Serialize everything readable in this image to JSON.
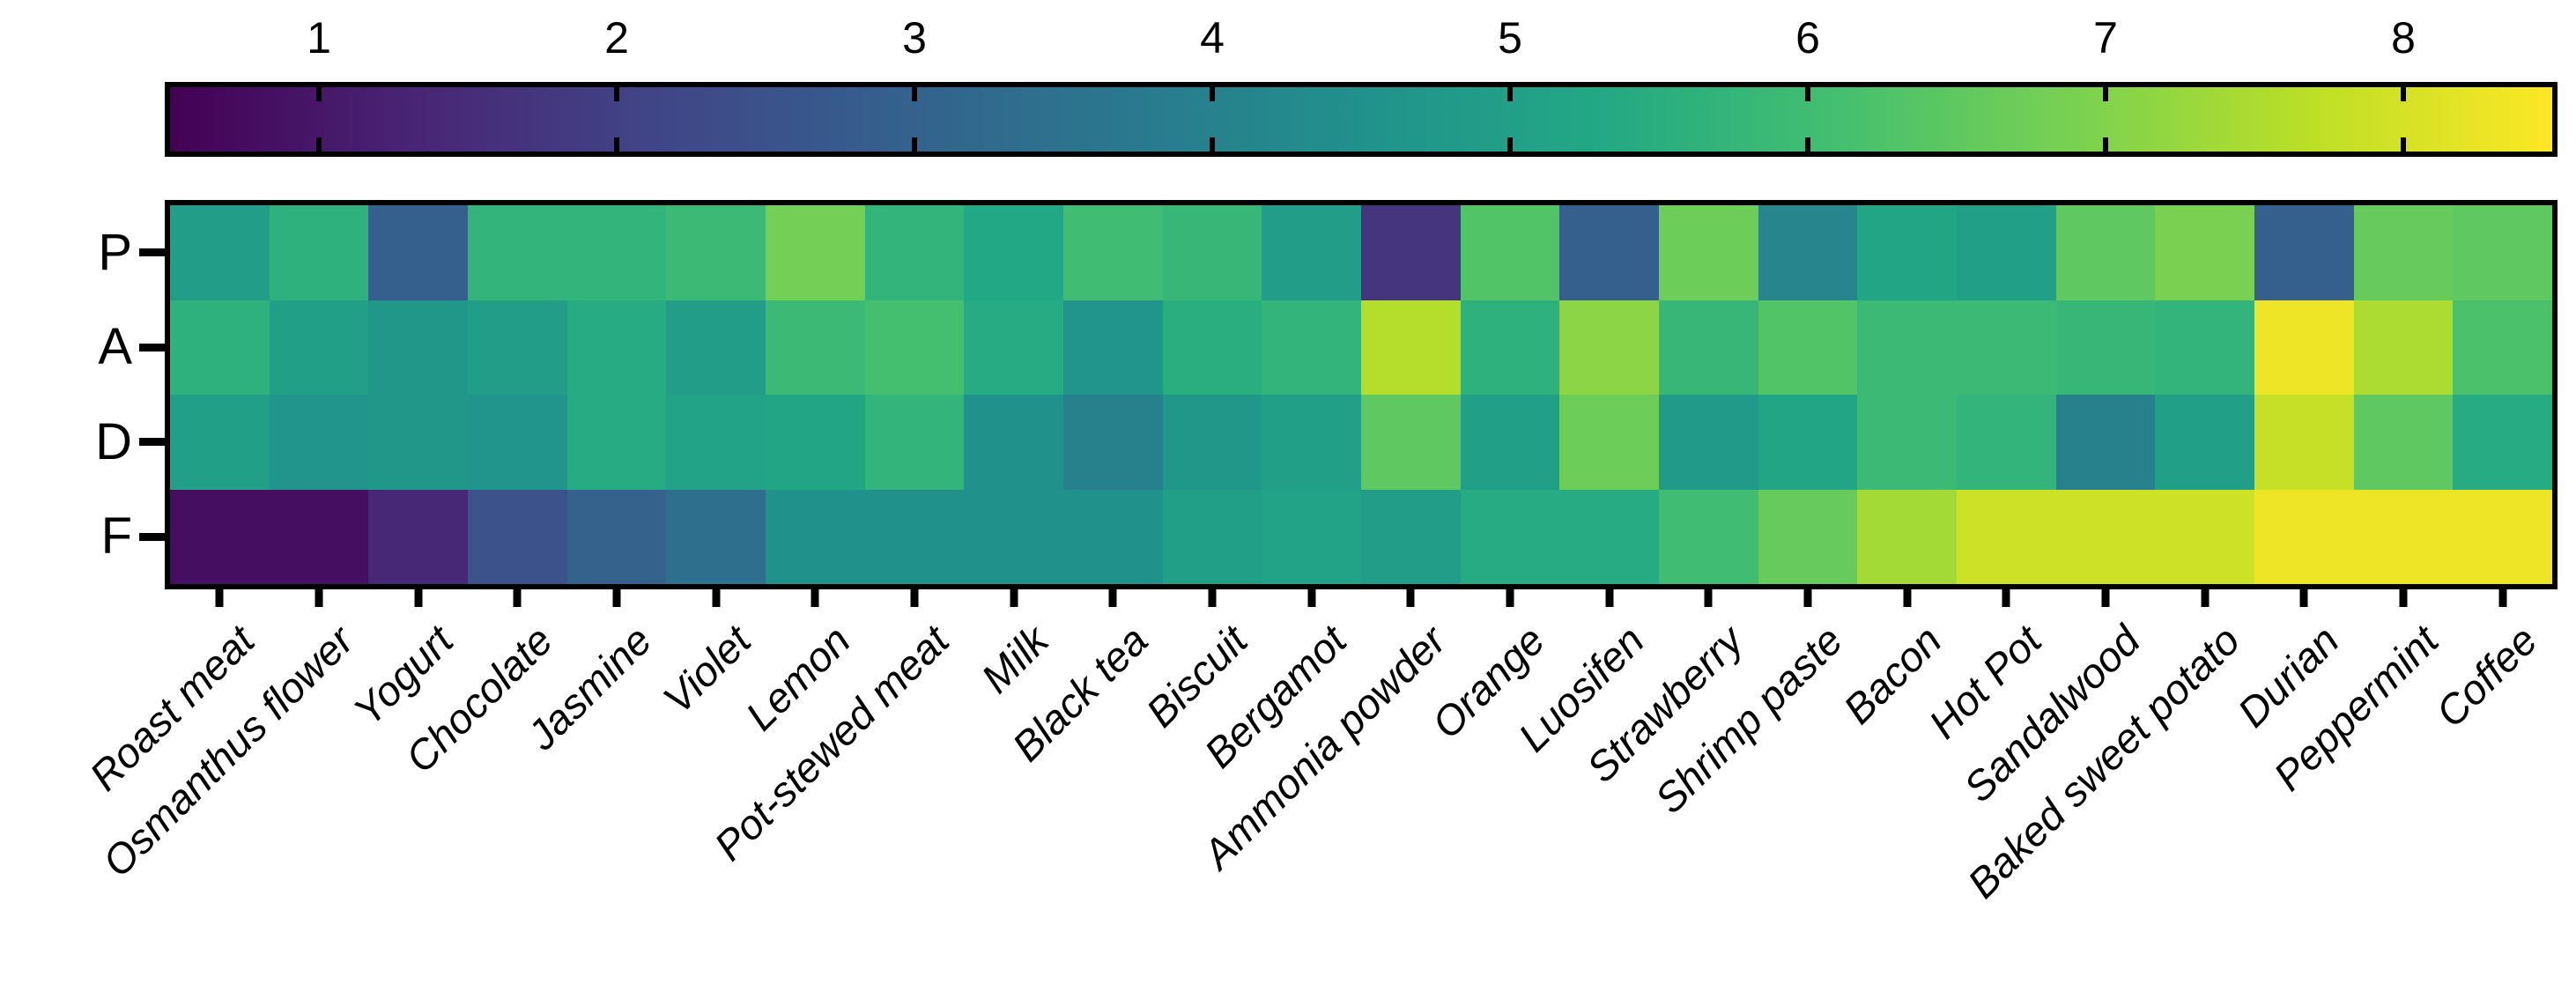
{
  "chart_data": {
    "type": "heatmap",
    "title": "",
    "rows": [
      "P",
      "A",
      "D",
      "F"
    ],
    "categories": [
      "Roast meat",
      "Osmanthus flower",
      "Yogurt",
      "Chocolate",
      "Jasmine",
      "Violet",
      "Lemon",
      "Pot-stewed meat",
      "Milk",
      "Black tea",
      "Biscuit",
      "Bergamot",
      "Ammonia powder",
      "Orange",
      "Luosifen",
      "Strawberry",
      "Shrimp paste",
      "Bacon",
      "Hot Pot",
      "Sandalwood",
      "Baked sweet potato",
      "Durian",
      "Peppermint",
      "Coffee"
    ],
    "series": [
      {
        "name": "P",
        "values": [
          4.9,
          5.6,
          2.9,
          5.7,
          5.7,
          5.9,
          6.8,
          5.7,
          5.3,
          6.0,
          5.8,
          4.9,
          1.7,
          6.3,
          2.9,
          6.7,
          4.1,
          5.2,
          5.0,
          6.5,
          6.9,
          2.9,
          6.6,
          6.5
        ]
      },
      {
        "name": "A",
        "values": [
          5.6,
          5.0,
          4.7,
          4.9,
          5.4,
          4.9,
          5.9,
          6.1,
          5.4,
          4.6,
          5.5,
          5.7,
          7.6,
          5.6,
          7.1,
          5.8,
          6.3,
          5.9,
          5.9,
          5.8,
          5.7,
          8.3,
          7.5,
          6.2
        ]
      },
      {
        "name": "D",
        "values": [
          5.0,
          4.6,
          4.7,
          4.6,
          5.4,
          5.1,
          5.2,
          5.7,
          4.5,
          4.0,
          4.7,
          5.0,
          6.5,
          5.0,
          6.7,
          4.8,
          5.2,
          5.9,
          5.7,
          4.0,
          5.0,
          7.8,
          6.5,
          5.4
        ]
      },
      {
        "name": "F",
        "values": [
          0.8,
          0.8,
          1.4,
          2.5,
          3.0,
          3.4,
          4.5,
          4.5,
          4.5,
          4.5,
          5.0,
          5.1,
          4.9,
          5.4,
          5.4,
          6.0,
          6.6,
          7.4,
          7.9,
          7.9,
          7.9,
          8.3,
          8.3,
          8.3
        ]
      }
    ],
    "colorbar": {
      "tick_labels": [
        "1",
        "2",
        "3",
        "4",
        "5",
        "6",
        "7",
        "8"
      ],
      "tick_values": [
        1,
        2,
        3,
        4,
        5,
        6,
        7,
        8
      ],
      "vmin": 0.5,
      "vmax": 8.5,
      "position": "top"
    },
    "colormap": {
      "name": "viridis",
      "stops": [
        "#440154",
        "#482475",
        "#414487",
        "#355f8d",
        "#2a788e",
        "#21918c",
        "#22a884",
        "#44bf70",
        "#7ad151",
        "#bddf26",
        "#fde725"
      ]
    },
    "layout": {
      "grid": false,
      "x_label_rotation_deg": 45,
      "x_label_style": "italic",
      "frame_color": "#000000",
      "background": "#ffffff"
    }
  }
}
